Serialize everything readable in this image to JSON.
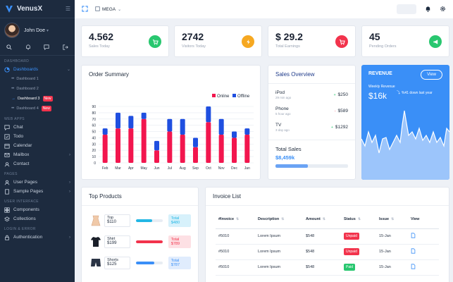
{
  "sidebar": {
    "brand": "VenusX",
    "user": "John Doe",
    "sections": {
      "dashboard": "DASHBOARD",
      "web_apps": "WEB APPS",
      "pages": "PAGES",
      "user_interface": "USER INTERFACE",
      "login_error": "LOGIN & ERROR"
    },
    "dashboards": "Dashboards",
    "dash_items": [
      "Dashboard 1",
      "Dashboard 2",
      "Dashboard 3",
      "Dashboard 4"
    ],
    "new_badge": "New",
    "web_apps": [
      "Chat",
      "Todo",
      "Calendar",
      "Mailbox",
      "Contact"
    ],
    "pages": [
      "User Pages",
      "Sample Pages"
    ],
    "ui": [
      "Components",
      "Collections"
    ],
    "login": [
      "Authentication"
    ]
  },
  "topbar": {
    "mega": "MEGA"
  },
  "stats": [
    {
      "value": "4.562",
      "label": "Sales Today",
      "color": "#28c76f",
      "icon": "cart-icon"
    },
    {
      "value": "2742",
      "label": "Visitors Today",
      "color": "#f6a821",
      "icon": "bolt-icon"
    },
    {
      "value": "$ 29.2",
      "label": "Total Earnings",
      "color": "#f2334c",
      "icon": "cart-icon"
    },
    {
      "value": "45",
      "label": "Pending Orders",
      "color": "#28c76f",
      "icon": "megaphone-icon"
    }
  ],
  "order_summary": {
    "title": "Order Summary"
  },
  "chart_data": {
    "type": "bar",
    "categories": [
      "Feb",
      "Mar",
      "Apr",
      "May",
      "Jun",
      "Jul",
      "Aug",
      "Sep",
      "Oct",
      "Nov",
      "Dec",
      "Jan"
    ],
    "series": [
      {
        "name": "Online",
        "color": "#f2164e",
        "values": [
          45,
          55,
          55,
          70,
          20,
          50,
          45,
          25,
          65,
          45,
          40,
          45
        ]
      },
      {
        "name": "Offline",
        "color": "#1f4fe0",
        "values": [
          10,
          25,
          20,
          10,
          15,
          20,
          25,
          15,
          25,
          25,
          10,
          10
        ]
      }
    ],
    "ylim": [
      0,
      90
    ],
    "yticks": [
      0,
      10,
      20,
      30,
      40,
      50,
      60,
      70,
      80,
      90
    ],
    "grid": true,
    "stacked": true,
    "legend": "top-right"
  },
  "sales_overview": {
    "title": "Sales Overview",
    "items": [
      {
        "name": "iPod",
        "time": "29 min ago",
        "dir": "+",
        "amount": "$250",
        "color": "#28c76f"
      },
      {
        "name": "Phone",
        "time": "5 hour ago",
        "dir": "-",
        "amount": "$589",
        "color": "#f2334c"
      },
      {
        "name": "TV",
        "time": "3 day ago",
        "dir": "+",
        "amount": "$1292",
        "color": "#28c76f"
      }
    ],
    "total_label": "Total Sales",
    "total_value": "$8,459k",
    "progress": 0.45
  },
  "revenue": {
    "title": "REVENUE",
    "button": "View",
    "subtitle": "Weekly Revenue",
    "value": "$16k",
    "change": "%41 down last year"
  },
  "top_products": {
    "title": "Top Products",
    "items": [
      {
        "name": "Top",
        "price": "$110",
        "total": "Total $480",
        "fill": 0.6,
        "bar_color": "#23b7e5",
        "total_bg": "#d7f1fb",
        "total_color": "#23b7e5",
        "icon": "top-icon"
      },
      {
        "name": "Shirt",
        "price": "$199",
        "total": "Total $789",
        "fill": 1.0,
        "bar_color": "#f2334c",
        "total_bg": "#fde0e4",
        "total_color": "#f2334c",
        "icon": "shirt-icon"
      },
      {
        "name": "Shorts",
        "price": "$125",
        "total": "Total $787",
        "fill": 0.7,
        "bar_color": "#3a8ff7",
        "total_bg": "#e0ecfd",
        "total_color": "#3a8ff7",
        "icon": "shorts-icon"
      }
    ]
  },
  "invoice_list": {
    "title": "Invoice List",
    "columns": [
      "#Invoice",
      "Description",
      "Amount",
      "Status",
      "Issue",
      "View"
    ],
    "rows": [
      {
        "invoice": "#5010",
        "desc": "Lorem Ipsum",
        "amount": "$548",
        "status": "Unpaid",
        "status_color": "#f2334c",
        "issue": "15-Jan"
      },
      {
        "invoice": "#5010",
        "desc": "Lorem Ipsum",
        "amount": "$548",
        "status": "Unpaid",
        "status_color": "#f2334c",
        "issue": "15-Jan"
      },
      {
        "invoice": "#5010",
        "desc": "Lorem Ipsum",
        "amount": "$548",
        "status": "Paid",
        "status_color": "#28c76f",
        "issue": "15-Jan"
      }
    ]
  }
}
